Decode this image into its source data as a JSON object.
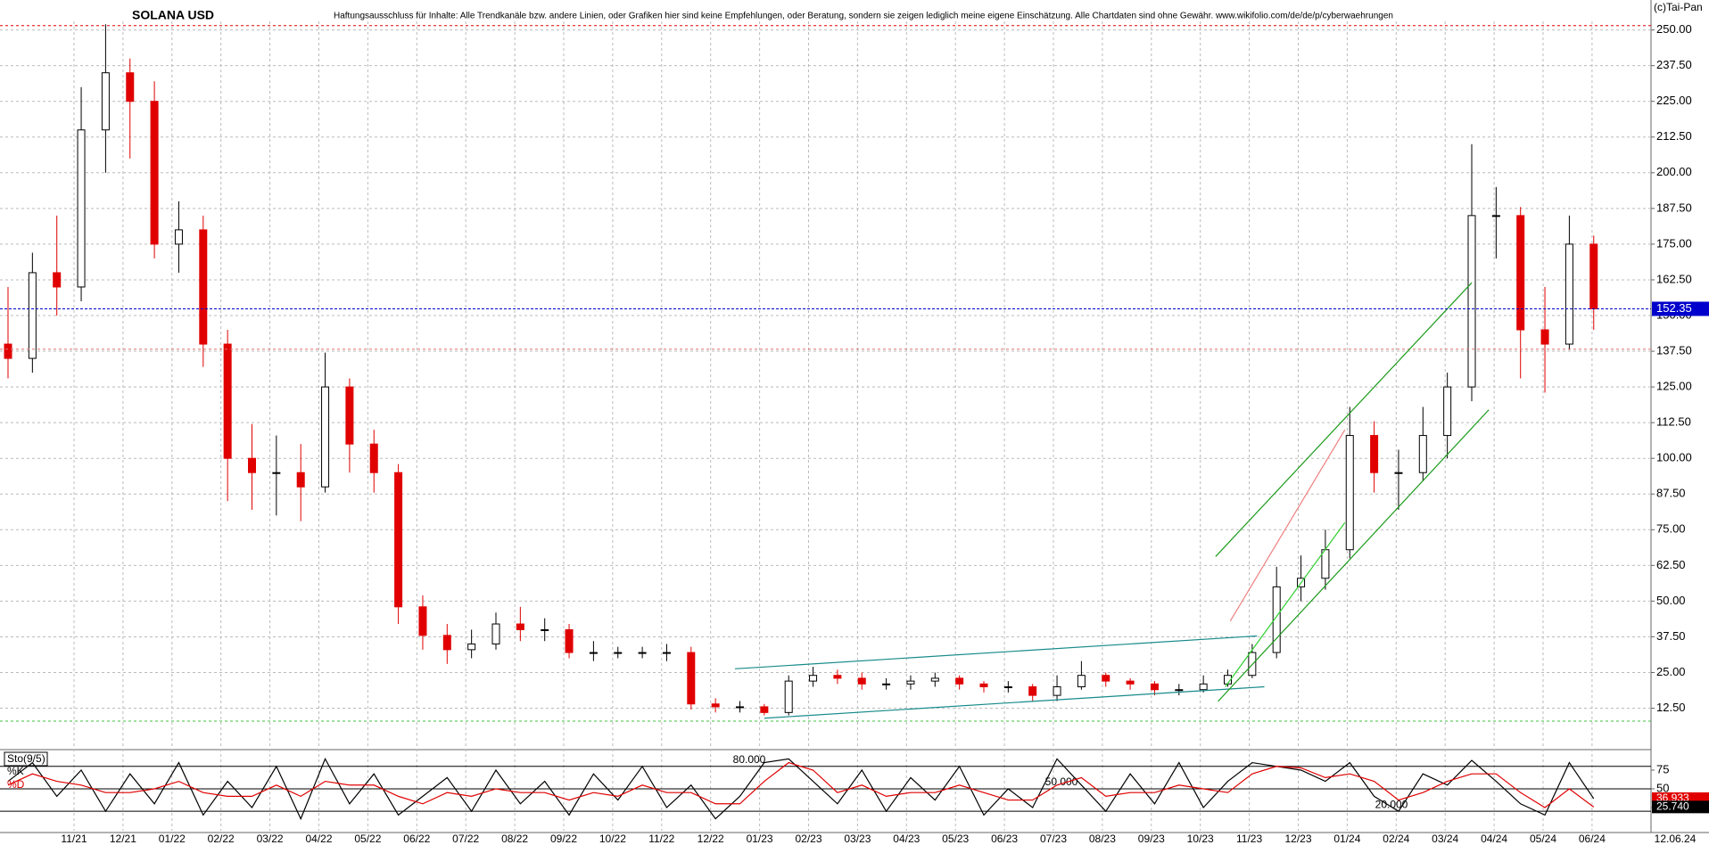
{
  "chart_data": [
    {
      "type": "candlestick",
      "title": "SOLANA USD",
      "disclaimer": "Haftungsausschluss für Inhalte: Alle Trendkanäle bzw. andere Linien, oder Grafiken hier sind keine Empfehlungen, oder Beratung, sondern sie zeigen lediglich meine eigene Einschätzung. Alle Chartdaten sind ohne Gewähr.  www.wikifolio.com/de/de/p/cyberwaehrungen",
      "source": "(c)Tai-Pan",
      "x_labels": [
        "11/21",
        "12/21",
        "01/22",
        "02/22",
        "03/22",
        "04/22",
        "05/22",
        "06/22",
        "07/22",
        "08/22",
        "09/22",
        "10/22",
        "11/22",
        "12/22",
        "01/23",
        "02/23",
        "03/23",
        "04/23",
        "05/23",
        "06/23",
        "07/23",
        "08/23",
        "09/23",
        "10/23",
        "11/23",
        "12/23",
        "01/24",
        "02/24",
        "03/24",
        "04/24",
        "05/24",
        "06/24"
      ],
      "date_label": "12.06.24",
      "open": [
        140,
        135,
        165,
        160,
        215,
        235,
        225,
        175,
        180,
        140,
        100,
        95,
        95,
        90,
        125,
        105,
        95,
        48,
        38,
        33,
        35,
        42,
        40,
        40,
        32,
        32,
        32,
        32,
        32,
        14,
        13,
        13,
        11,
        22,
        24,
        23,
        21,
        21,
        22,
        23,
        21,
        20,
        20,
        17,
        20,
        24,
        22,
        21,
        19,
        19,
        21,
        24,
        32,
        55,
        58,
        68,
        108,
        95,
        95,
        108,
        125,
        185,
        185,
        145,
        140,
        175
      ],
      "high": [
        160,
        172,
        185,
        230,
        252,
        240,
        232,
        190,
        185,
        145,
        112,
        108,
        105,
        137,
        128,
        110,
        98,
        52,
        42,
        40,
        46,
        48,
        44,
        42,
        36,
        34,
        34,
        35,
        34,
        16,
        15,
        14,
        24,
        27,
        26,
        25,
        23,
        24,
        25,
        24,
        22,
        22,
        21,
        24,
        29,
        25,
        23,
        22,
        21,
        24,
        26,
        35,
        62,
        66,
        75,
        118,
        113,
        103,
        118,
        130,
        210,
        195,
        188,
        160,
        185,
        178
      ],
      "low": [
        128,
        130,
        150,
        155,
        200,
        205,
        170,
        165,
        132,
        85,
        82,
        80,
        78,
        88,
        95,
        88,
        42,
        33,
        28,
        30,
        33,
        36,
        36,
        30,
        29,
        30,
        30,
        29,
        12,
        11,
        11,
        10,
        10,
        20,
        21,
        19,
        19,
        19,
        20,
        19,
        18,
        18,
        15,
        15,
        19,
        20,
        19,
        17,
        17,
        18,
        20,
        23,
        30,
        50,
        54,
        65,
        88,
        82,
        92,
        100,
        120,
        170,
        128,
        123,
        138,
        145
      ],
      "close": [
        135,
        165,
        160,
        215,
        235,
        225,
        175,
        180,
        140,
        100,
        95,
        95,
        90,
        125,
        105,
        95,
        48,
        38,
        33,
        35,
        42,
        40,
        40,
        32,
        32,
        32,
        32,
        32,
        14,
        13,
        13,
        11,
        22,
        24,
        23,
        21,
        21,
        22,
        23,
        21,
        20,
        20,
        17,
        20,
        24,
        22,
        21,
        19,
        19,
        21,
        24,
        32,
        55,
        58,
        68,
        108,
        95,
        95,
        108,
        125,
        185,
        185,
        145,
        140,
        175,
        152.35
      ],
      "up_color": "#000000",
      "down_color": "#e00000",
      "ylim": [
        -2,
        253
      ],
      "yticks": [
        {
          "value": 12.5,
          "label": "12.50"
        },
        {
          "value": 25,
          "label": "25.00"
        },
        {
          "value": 37.5,
          "label": "37.50"
        },
        {
          "value": 50,
          "label": "50.00"
        },
        {
          "value": 62.5,
          "label": "62.50"
        },
        {
          "value": 75,
          "label": "75.00"
        },
        {
          "value": 87.5,
          "label": "87.50"
        },
        {
          "value": 100,
          "label": "100.00"
        },
        {
          "value": 112.5,
          "label": "112.50"
        },
        {
          "value": 125,
          "label": "125.00"
        },
        {
          "value": 137.5,
          "label": "137.50"
        },
        {
          "value": 150,
          "label": "150.00"
        },
        {
          "value": 162.5,
          "label": "162.50"
        },
        {
          "value": 175,
          "label": "175.00"
        },
        {
          "value": 187.5,
          "label": "187.50"
        },
        {
          "value": 200,
          "label": "200.00"
        },
        {
          "value": 212.5,
          "label": "212.50"
        },
        {
          "value": 225,
          "label": "225.00"
        },
        {
          "value": 237.5,
          "label": "237.50"
        },
        {
          "value": 250,
          "label": "250.00"
        }
      ],
      "grid": true,
      "hlines": [
        {
          "value": 251.5,
          "color": "#e00000"
        },
        {
          "value": 138.2,
          "color": "#e07070"
        },
        {
          "value": 8,
          "color": "#40c040"
        }
      ],
      "last_price_color": "#0000cc",
      "trendlines": [
        {
          "x": [
            29.8,
            51.2
          ],
          "y": [
            26.3,
            37.8
          ],
          "color": "#178a8a"
        },
        {
          "x": [
            31,
            51.5
          ],
          "y": [
            9,
            20
          ],
          "color": "#178a8a"
        },
        {
          "x": [
            49.5,
            60
          ],
          "y": [
            65.6,
            161.5
          ],
          "color": "#1a9a1a"
        },
        {
          "x": [
            49.6,
            60.7
          ],
          "y": [
            14.9,
            117
          ],
          "color": "#1a9a1a"
        },
        {
          "x": [
            49.9,
            54.8
          ],
          "y": [
            20,
            77.5
          ],
          "color": "#30d030"
        },
        {
          "x": [
            50.1,
            54.8
          ],
          "y": [
            43,
            110
          ],
          "color": "#f08080"
        }
      ]
    },
    {
      "type": "line",
      "label": "Sto(9/5)",
      "ylim": [
        -6,
        100
      ],
      "yticks": [
        25,
        50,
        75
      ],
      "levels": [
        {
          "value": 80,
          "label": "80.000"
        },
        {
          "value": 50,
          "label": "50.000"
        },
        {
          "value": 20,
          "label": "20.000"
        }
      ],
      "series": [
        {
          "name": "%K",
          "color": "#000000",
          "values": [
            60,
            85,
            40,
            75,
            20,
            70,
            30,
            85,
            15,
            60,
            25,
            80,
            10,
            90,
            30,
            70,
            15,
            40,
            65,
            20,
            75,
            30,
            60,
            15,
            70,
            35,
            80,
            25,
            55,
            10,
            40,
            85,
            90,
            60,
            30,
            75,
            20,
            65,
            35,
            80,
            15,
            50,
            25,
            90,
            55,
            20,
            70,
            30,
            85,
            25,
            60,
            85,
            80,
            75,
            60,
            85,
            40,
            20,
            70,
            55,
            88,
            60,
            30,
            15,
            85,
            36.933
          ]
        },
        {
          "name": "%D",
          "color": "#e00000",
          "values": [
            55,
            70,
            60,
            55,
            45,
            45,
            50,
            60,
            45,
            40,
            40,
            55,
            40,
            60,
            55,
            55,
            40,
            30,
            45,
            40,
            50,
            45,
            45,
            35,
            45,
            40,
            55,
            45,
            45,
            30,
            30,
            60,
            85,
            75,
            45,
            55,
            40,
            45,
            45,
            55,
            45,
            35,
            35,
            55,
            65,
            40,
            45,
            45,
            55,
            50,
            45,
            70,
            80,
            78,
            65,
            70,
            60,
            35,
            45,
            60,
            70,
            70,
            45,
            25,
            50,
            25.74
          ],
          "value_labels": [
            null,
            null,
            null,
            null,
            null,
            null,
            null,
            null,
            null,
            null,
            null,
            null,
            null,
            null,
            null,
            null,
            null,
            null,
            null,
            null,
            null,
            null,
            null,
            null,
            null,
            null,
            null,
            null,
            null,
            null,
            null,
            null,
            null,
            null,
            null,
            null,
            null,
            null,
            null,
            null,
            null,
            null,
            null,
            null,
            null,
            null,
            null,
            null,
            null,
            null,
            null,
            null,
            null,
            null,
            null,
            null,
            null,
            null,
            null,
            null,
            null,
            null,
            null,
            null,
            null,
            "25.740"
          ]
        }
      ]
    }
  ]
}
